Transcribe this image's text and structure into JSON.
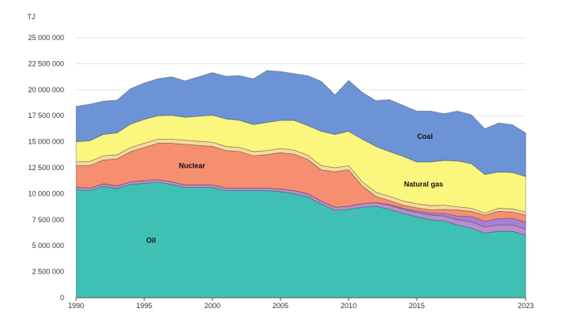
{
  "chart_data": {
    "type": "area",
    "stacked": true,
    "ylabel": "TJ",
    "ylim": [
      0,
      25000000
    ],
    "xlim": [
      1990,
      2023
    ],
    "grid": true,
    "legend": "inline labels",
    "x": [
      1990,
      1991,
      1992,
      1993,
      1994,
      1995,
      1996,
      1997,
      1998,
      1999,
      2000,
      2001,
      2002,
      2003,
      2004,
      2005,
      2006,
      2007,
      2008,
      2009,
      2010,
      2011,
      2012,
      2013,
      2014,
      2015,
      2016,
      2017,
      2018,
      2019,
      2020,
      2021,
      2022,
      2023
    ],
    "x_ticks": [
      1990,
      1995,
      2000,
      2005,
      2010,
      2015,
      2023
    ],
    "y_ticks": [
      0,
      2500000,
      5000000,
      7500000,
      10000000,
      12500000,
      15000000,
      17500000,
      20000000,
      22500000,
      25000000
    ],
    "y_tick_labels": [
      "0",
      "2 500 000",
      "5 000 000",
      "7 500 000",
      "10 000 000",
      "12 500 000",
      "15 000 000",
      "17 500 000",
      "20 000 000",
      "22 500 000",
      "25 000 000"
    ],
    "x_tick_labels": [
      "1990",
      "1995",
      "2000",
      "2005",
      "2010",
      "2015",
      "2023"
    ],
    "series": [
      {
        "name": "Oil",
        "color": "#40c0b4",
        "values": [
          10400000,
          10300000,
          10700000,
          10500000,
          10900000,
          11000000,
          11100000,
          10900000,
          10600000,
          10600000,
          10600000,
          10300000,
          10300000,
          10300000,
          10300000,
          10200000,
          10000000,
          9700000,
          9000000,
          8400000,
          8500000,
          8700000,
          8800000,
          8500000,
          8100000,
          7800000,
          7500000,
          7400000,
          7000000,
          6700000,
          6200000,
          6400000,
          6400000,
          6000000
        ]
      },
      {
        "name": "",
        "color": "#b88ed0",
        "values": [
          250000,
          250000,
          250000,
          250000,
          250000,
          250000,
          250000,
          250000,
          250000,
          250000,
          250000,
          250000,
          250000,
          250000,
          250000,
          250000,
          300000,
          300000,
          300000,
          300000,
          300000,
          350000,
          350000,
          400000,
          400000,
          400000,
          450000,
          450000,
          500000,
          600000,
          600000,
          600000,
          600000,
          600000
        ]
      },
      {
        "name": "",
        "color": "#a880d8",
        "values": [
          0,
          0,
          0,
          0,
          0,
          0,
          0,
          0,
          0,
          0,
          0,
          0,
          0,
          0,
          0,
          0,
          0,
          0,
          0,
          0,
          0,
          0,
          0,
          50000,
          100000,
          150000,
          200000,
          250000,
          350000,
          500000,
          550000,
          600000,
          650000,
          650000
        ]
      },
      {
        "name": "Nuclear",
        "color": "#f58f70",
        "values": [
          2050000,
          2150000,
          2300000,
          2600000,
          2900000,
          3200000,
          3500000,
          3700000,
          3900000,
          3800000,
          3700000,
          3600000,
          3500000,
          3100000,
          3200000,
          3500000,
          3500000,
          3300000,
          3000000,
          3400000,
          3500000,
          1700000,
          600000,
          400000,
          300000,
          300000,
          300000,
          400000,
          600000,
          500000,
          600000,
          700000,
          600000,
          700000
        ]
      },
      {
        "name": "",
        "color": "#f9d99a",
        "values": [
          400000,
          400000,
          400000,
          400000,
          400000,
          400000,
          400000,
          400000,
          400000,
          400000,
          400000,
          400000,
          400000,
          400000,
          400000,
          400000,
          400000,
          400000,
          400000,
          400000,
          400000,
          400000,
          400000,
          400000,
          400000,
          400000,
          400000,
          400000,
          300000,
          300000,
          200000,
          300000,
          300000,
          300000
        ]
      },
      {
        "name": "Natural gas",
        "color": "#fbf67e",
        "values": [
          1900000,
          2000000,
          2050000,
          2100000,
          2250000,
          2300000,
          2250000,
          2300000,
          2200000,
          2400000,
          2600000,
          2650000,
          2600000,
          2600000,
          2700000,
          2700000,
          2850000,
          2850000,
          3300000,
          3200000,
          3300000,
          4100000,
          4400000,
          4300000,
          4300000,
          4000000,
          4200000,
          4300000,
          4400000,
          4300000,
          3700000,
          3500000,
          3500000,
          3400000
        ]
      },
      {
        "name": "Coal",
        "color": "#6b93d6",
        "values": [
          3400000,
          3500000,
          3200000,
          3150000,
          3400000,
          3500000,
          3550000,
          3700000,
          3500000,
          3800000,
          4100000,
          4100000,
          4300000,
          4400000,
          5000000,
          4700000,
          4500000,
          4800000,
          4800000,
          3800000,
          4900000,
          4500000,
          4400000,
          5000000,
          4900000,
          4900000,
          4900000,
          4500000,
          4800000,
          4700000,
          4400000,
          4700000,
          4600000,
          4200000
        ]
      }
    ],
    "annotations": [
      {
        "text": "Coal",
        "x": 2015.6,
        "y": 15500000
      },
      {
        "text": "Natural gas",
        "x": 2015.5,
        "y": 10900000
      },
      {
        "text": "Nuclear",
        "x": 1998.5,
        "y": 12700000
      },
      {
        "text": "Oil",
        "x": 1995.5,
        "y": 5500000
      }
    ]
  }
}
